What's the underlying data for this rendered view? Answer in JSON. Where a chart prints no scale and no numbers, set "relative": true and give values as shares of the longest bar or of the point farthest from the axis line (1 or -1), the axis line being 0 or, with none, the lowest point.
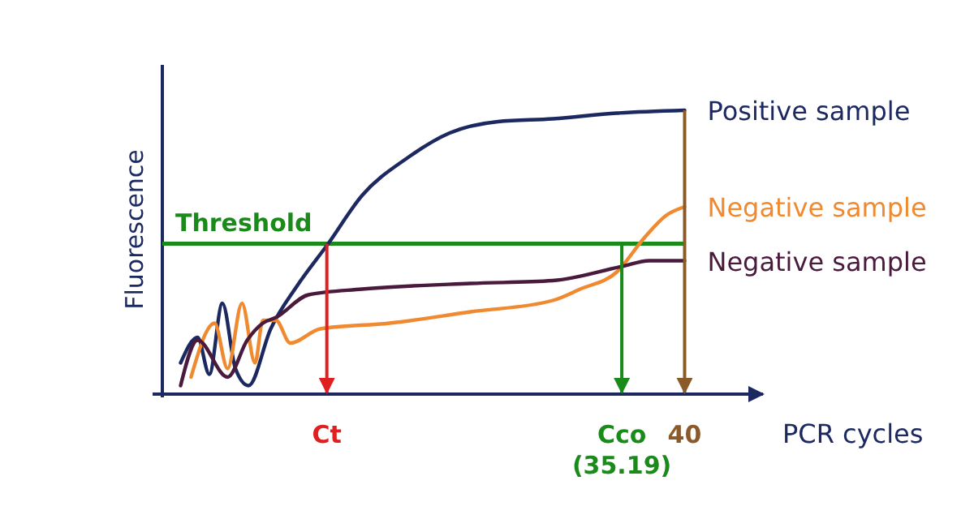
{
  "chart_data": {
    "type": "line",
    "relative": true,
    "xlabel": "PCR cycles",
    "ylabel": "Fluorescence",
    "xlim": [
      0,
      46
    ],
    "xticks": [
      {
        "value": 12.6,
        "label": "Ct"
      },
      {
        "value": 35.19,
        "label": "Cco (35.19)"
      },
      40
    ],
    "series": [
      {
        "name": "Positive sample",
        "color": "#1c2860",
        "x": [
          1.4,
          2.7,
          3.6,
          4.6,
          5.6,
          6.6,
          8.3,
          10.3,
          12.7,
          15.3,
          18.7,
          22.0,
          25.7,
          29.9,
          34.8,
          40
        ],
        "values": [
          0.11,
          0.2,
          0.07,
          0.32,
          0.09,
          0.03,
          0.23,
          0.38,
          0.53,
          0.7,
          0.83,
          0.92,
          0.96,
          0.97,
          0.99,
          1
        ]
      },
      {
        "name": "Negative sample",
        "color": "#f08a30",
        "x": [
          2.2,
          4.0,
          5.0,
          6.1,
          7.1,
          7.7,
          8.7,
          9.8,
          12.1,
          17.4,
          23.6,
          29.9,
          32.0,
          34.8,
          36.9,
          38.6,
          40
        ],
        "values": [
          0.06,
          0.25,
          0.09,
          0.32,
          0.11,
          0.26,
          0.26,
          0.18,
          0.23,
          0.25,
          0.29,
          0.33,
          0.37,
          0.43,
          0.55,
          0.63,
          0.66
        ]
      },
      {
        "name": "Negative sample",
        "color": "#4a1a3c",
        "x": [
          1.4,
          2.7,
          5.0,
          6.5,
          7.7,
          8.7,
          11.2,
          15.3,
          23.6,
          29.9,
          35.2,
          37.3,
          40
        ],
        "values": [
          0.03,
          0.19,
          0.06,
          0.19,
          0.25,
          0.27,
          0.35,
          0.37,
          0.39,
          0.4,
          0.45,
          0.47,
          0.47
        ]
      }
    ],
    "ref_lines": [
      {
        "axis": "y",
        "value": 0.53,
        "label": "Threshold",
        "color": "#1a8a1a"
      },
      {
        "axis": "x",
        "value": 12.6,
        "color": "#e02020"
      },
      {
        "axis": "x",
        "value": 35.19,
        "color": "#1a8a1a"
      },
      {
        "axis": "x",
        "value": 40,
        "color": "#8a5a2a"
      }
    ]
  }
}
